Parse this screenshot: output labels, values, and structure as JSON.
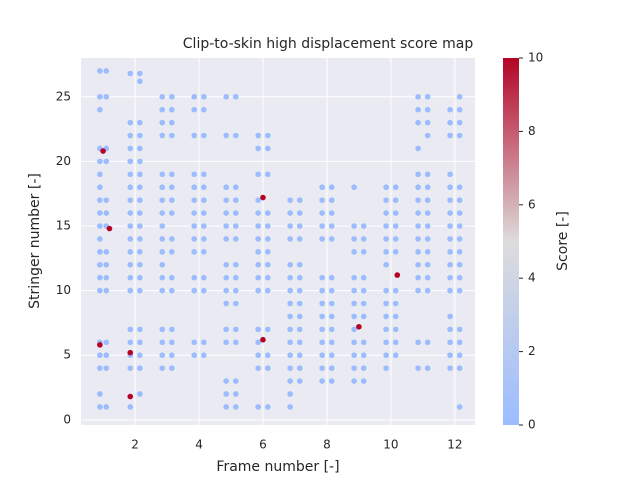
{
  "chart_data": {
    "type": "scatter",
    "title": "Clip-to-skin high displacement score map",
    "xlabel": "Frame number [-]",
    "ylabel": "Stringer number [-]",
    "xlim": [
      0.31,
      12.63
    ],
    "ylim": [
      -0.4,
      28
    ],
    "xticks": [
      2,
      4,
      6,
      8,
      10,
      12
    ],
    "yticks": [
      0,
      5,
      10,
      15,
      20,
      25
    ],
    "grid": true,
    "colorbar": {
      "label": "Score [-]",
      "clim": [
        0,
        10
      ],
      "ticks": [
        0,
        2,
        4,
        6,
        8,
        10
      ],
      "cmap": [
        "#9bbcff",
        "#dddcdc",
        "#b40426"
      ]
    },
    "x": [
      0.9,
      0.9,
      0.9,
      0.9,
      0.9,
      0.9,
      0.9,
      0.9,
      0.9,
      0.9,
      0.9,
      0.9,
      0.9,
      0.9,
      0.9,
      0.9,
      0.9,
      0.9,
      0.9,
      0.9,
      1.1,
      1.1,
      1.1,
      1.1,
      1.1,
      1.1,
      1.1,
      1.1,
      1.1,
      1.1,
      1.1,
      1.1,
      1.1,
      1.1,
      1.1,
      1.85,
      1.85,
      1.85,
      1.85,
      1.85,
      1.85,
      1.85,
      1.85,
      1.85,
      1.85,
      1.85,
      1.85,
      1.85,
      1.85,
      1.85,
      1.85,
      1.85,
      1.85,
      1.85,
      1.85,
      2.15,
      2.15,
      2.15,
      2.15,
      2.15,
      2.15,
      2.15,
      2.15,
      2.15,
      2.15,
      2.15,
      2.15,
      2.15,
      2.15,
      2.15,
      2.15,
      2.15,
      2.15,
      2.15,
      2.15,
      2.15,
      2.85,
      2.85,
      2.85,
      2.85,
      2.85,
      2.85,
      2.85,
      2.85,
      2.85,
      2.85,
      2.85,
      2.85,
      2.85,
      2.85,
      2.85,
      2.85,
      2.85,
      2.85,
      3.15,
      3.15,
      3.15,
      3.15,
      3.15,
      3.15,
      3.15,
      3.15,
      3.15,
      3.15,
      3.15,
      3.15,
      3.15,
      3.15,
      3.15,
      3.15,
      3.85,
      3.85,
      3.85,
      3.85,
      3.85,
      3.85,
      3.85,
      3.85,
      3.85,
      3.85,
      3.85,
      3.85,
      3.85,
      3.85,
      4.15,
      4.15,
      4.15,
      4.15,
      4.15,
      4.15,
      4.15,
      4.15,
      4.15,
      4.15,
      4.15,
      4.15,
      4.15,
      4.15,
      4.85,
      4.85,
      4.85,
      4.85,
      4.85,
      4.85,
      4.85,
      4.85,
      4.85,
      4.85,
      4.85,
      4.85,
      4.85,
      4.85,
      4.85,
      4.85,
      5.15,
      5.15,
      5.15,
      5.15,
      5.15,
      5.15,
      5.15,
      5.15,
      5.15,
      5.15,
      5.15,
      5.15,
      5.15,
      5.15,
      5.15,
      5.15,
      5.85,
      5.85,
      5.85,
      5.85,
      5.85,
      5.85,
      5.85,
      5.85,
      5.85,
      5.85,
      5.85,
      5.85,
      5.85,
      5.85,
      5.85,
      5.85,
      6.15,
      6.15,
      6.15,
      6.15,
      6.15,
      6.15,
      6.15,
      6.15,
      6.15,
      6.15,
      6.15,
      6.15,
      6.15,
      6.15,
      6.85,
      6.85,
      6.85,
      6.85,
      6.85,
      6.85,
      6.85,
      6.85,
      6.85,
      6.85,
      6.85,
      6.85,
      6.85,
      6.85,
      6.85,
      6.85,
      7.15,
      7.15,
      7.15,
      7.15,
      7.15,
      7.15,
      7.15,
      7.15,
      7.15,
      7.15,
      7.15,
      7.15,
      7.15,
      7.15,
      7.85,
      7.85,
      7.85,
      7.85,
      7.85,
      7.85,
      7.85,
      7.85,
      7.85,
      7.85,
      7.85,
      7.85,
      7.85,
      7.85,
      8.15,
      8.15,
      8.15,
      8.15,
      8.15,
      8.15,
      8.15,
      8.15,
      8.15,
      8.15,
      8.15,
      8.15,
      8.15,
      8.15,
      8.85,
      8.85,
      8.85,
      8.85,
      8.85,
      8.85,
      8.85,
      8.85,
      8.85,
      8.85,
      8.85,
      8.85,
      8.85,
      9.15,
      9.15,
      9.15,
      9.15,
      9.15,
      9.15,
      9.15,
      9.15,
      9.15,
      9.15,
      9.15,
      9.85,
      9.85,
      9.85,
      9.85,
      9.85,
      9.85,
      9.85,
      9.85,
      9.85,
      9.85,
      9.85,
      9.85,
      9.85,
      9.85,
      10.15,
      10.15,
      10.15,
      10.15,
      10.15,
      10.15,
      10.15,
      10.15,
      10.15,
      10.15,
      10.15,
      10.15,
      10.85,
      10.85,
      10.85,
      10.85,
      10.85,
      10.85,
      10.85,
      10.85,
      10.85,
      10.85,
      10.85,
      10.85,
      10.85,
      10.85,
      10.85,
      10.85,
      11.15,
      11.15,
      11.15,
      11.15,
      11.15,
      11.15,
      11.15,
      11.15,
      11.15,
      11.15,
      11.15,
      11.15,
      11.15,
      11.15,
      11.15,
      11.15,
      11.85,
      11.85,
      11.85,
      11.85,
      11.85,
      11.85,
      11.85,
      11.85,
      11.85,
      11.85,
      11.85,
      11.85,
      11.85,
      11.85,
      11.85,
      11.85,
      11.85,
      11.85,
      12.15,
      12.15,
      12.15,
      12.15,
      12.15,
      12.15,
      12.15,
      12.15,
      12.15,
      12.15,
      12.15,
      12.15,
      12.15,
      12.15,
      12.15,
      12.15,
      12.15,
      12.15,
      1.0,
      1.2,
      0.9,
      1.85,
      1.85,
      6.0,
      6.0,
      9.0,
      10.2
    ],
    "y": [
      27,
      25,
      24,
      21,
      20,
      19,
      18,
      17,
      16,
      15,
      14,
      13,
      12,
      11,
      10,
      6,
      5,
      4,
      2,
      1,
      27,
      25,
      21,
      20,
      17,
      16,
      15,
      13,
      12,
      11,
      10,
      6,
      5,
      4,
      1,
      26.8,
      23,
      22,
      21,
      20,
      19,
      18,
      17,
      16,
      15,
      14,
      13,
      12,
      11,
      10,
      7,
      6,
      5,
      4,
      1,
      26.8,
      26.2,
      23,
      22,
      21,
      20,
      19,
      18,
      17,
      16,
      15,
      14,
      13,
      12,
      11,
      10,
      7,
      6,
      5,
      4,
      2,
      25,
      24,
      23,
      22,
      19,
      18,
      17,
      16,
      15,
      14,
      13,
      12,
      11,
      10,
      7,
      6,
      5,
      4,
      25,
      24,
      23,
      22,
      19,
      18,
      17,
      16,
      14,
      13,
      11,
      10,
      7,
      6,
      5,
      4,
      25,
      24,
      22,
      19,
      18,
      17,
      16,
      15,
      14,
      13,
      11,
      10,
      6,
      5,
      25,
      24,
      22,
      19,
      18,
      17,
      16,
      15,
      14,
      13,
      11,
      10,
      6,
      5,
      25,
      22,
      18,
      17,
      16,
      15,
      14,
      12,
      11,
      10,
      9,
      7,
      6,
      3,
      2,
      1,
      25,
      22,
      18,
      17,
      16,
      15,
      14,
      12,
      11,
      10,
      9,
      7,
      6,
      3,
      2,
      1,
      22,
      21,
      19,
      17,
      16,
      15,
      14,
      13,
      12,
      11,
      10,
      7,
      6,
      5,
      4,
      1,
      22,
      21,
      19,
      16,
      15,
      14,
      13,
      12,
      11,
      10,
      7,
      5,
      4,
      1,
      17,
      16,
      15,
      14,
      12,
      11,
      10,
      9,
      8,
      7,
      6,
      5,
      4,
      3,
      2,
      1,
      17,
      16,
      15,
      14,
      12,
      11,
      10,
      9,
      8,
      7,
      6,
      5,
      4,
      3,
      18,
      17,
      16,
      15,
      14,
      11,
      10,
      9,
      8,
      7,
      6,
      5,
      4,
      3,
      18,
      17,
      16,
      15,
      14,
      11,
      10,
      9,
      8,
      7,
      6,
      5,
      4,
      3,
      18,
      15,
      14,
      13,
      11,
      10,
      9,
      8,
      7,
      6,
      5,
      4,
      3,
      15,
      14,
      13,
      11,
      10,
      9,
      8,
      6,
      5,
      4,
      3,
      18,
      17,
      16,
      15,
      14,
      13,
      12,
      10,
      9,
      8,
      7,
      6,
      5,
      4,
      18,
      17,
      16,
      15,
      14,
      13,
      10,
      9,
      8,
      7,
      6,
      5,
      25,
      24,
      23,
      21,
      19,
      18,
      17,
      16,
      15,
      14,
      13,
      12,
      11,
      10,
      6,
      4,
      25,
      24,
      23,
      22,
      19,
      18,
      17,
      16,
      15,
      14,
      13,
      12,
      11,
      10,
      6,
      4,
      24,
      23,
      22,
      19,
      18,
      17,
      16,
      15,
      14,
      13,
      12,
      11,
      10,
      8,
      7,
      6,
      5,
      4,
      25,
      24,
      23,
      22,
      18,
      17,
      16,
      15,
      14,
      13,
      12,
      11,
      10,
      7,
      6,
      5,
      4,
      1,
      20.8,
      14.8,
      5.8,
      5.2,
      1.8,
      17.2,
      6.2,
      7.2,
      11.2
    ],
    "scores": [
      0,
      0,
      0,
      0,
      0,
      0,
      0,
      0,
      0,
      0,
      0,
      0,
      0,
      0,
      0,
      0,
      0,
      0,
      0,
      0,
      0,
      0,
      0,
      0,
      0,
      0,
      0,
      0,
      0,
      0,
      0,
      0,
      0,
      0,
      0,
      0,
      0,
      0,
      0,
      0,
      0,
      0,
      0,
      0,
      0,
      0,
      0,
      0,
      0,
      0,
      0,
      0,
      0,
      0,
      0,
      0,
      0,
      0,
      0,
      0,
      0,
      0,
      0,
      0,
      0,
      0,
      0,
      0,
      0,
      0,
      0,
      0,
      0,
      0,
      0,
      0,
      0,
      0,
      0,
      0,
      0,
      0,
      0,
      0,
      0,
      0,
      0,
      0,
      0,
      0,
      0,
      0,
      0,
      0,
      0,
      0,
      0,
      0,
      0,
      0,
      0,
      0,
      0,
      0,
      0,
      0,
      0,
      0,
      0,
      0,
      0,
      0,
      0,
      0,
      0,
      0,
      0,
      0,
      0,
      0,
      0,
      0,
      0,
      0,
      0,
      0,
      0,
      0,
      0,
      0,
      0,
      0,
      0,
      0,
      0,
      0,
      0,
      0,
      0,
      0,
      0,
      0,
      0,
      0,
      0,
      0,
      0,
      0,
      0,
      0,
      0,
      0,
      0,
      0,
      0,
      0,
      0,
      0,
      0,
      0,
      0,
      0,
      0,
      0,
      0,
      0,
      0,
      0,
      0,
      0,
      0,
      0,
      0,
      0,
      0,
      0,
      0,
      0,
      0,
      0,
      0,
      0,
      0,
      0,
      0,
      0,
      0,
      0,
      0,
      0,
      0,
      0,
      0,
      0,
      0,
      0,
      0,
      0,
      0,
      0,
      0,
      0,
      0,
      0,
      0,
      0,
      0,
      0,
      0,
      0,
      0,
      0,
      0,
      0,
      0,
      0,
      0,
      0,
      0,
      0,
      0,
      0,
      0,
      0,
      0,
      0,
      0,
      0,
      0,
      0,
      0,
      0,
      0,
      0,
      0,
      0,
      0,
      0,
      0,
      0,
      0,
      0,
      0,
      0,
      0,
      0,
      0,
      0,
      0,
      0,
      0,
      0,
      0,
      0,
      0,
      0,
      0,
      0,
      0,
      0,
      0,
      0,
      0,
      0,
      0,
      0,
      0,
      0,
      0,
      0,
      0,
      0,
      0,
      0,
      0,
      0,
      0,
      0,
      0,
      0,
      0,
      0,
      0,
      0,
      0,
      0,
      0,
      0,
      0,
      0,
      0,
      0,
      0,
      0,
      0,
      0,
      0,
      0,
      0,
      0,
      0,
      0,
      0,
      0,
      0,
      0,
      0,
      0,
      0,
      0,
      0,
      0,
      0,
      0,
      0,
      0,
      0,
      0,
      0,
      0,
      0,
      0,
      0,
      0,
      0,
      0,
      0,
      0,
      0,
      0,
      0,
      0,
      0,
      0,
      0,
      0,
      0,
      0,
      0,
      0,
      0,
      0,
      0,
      0,
      0,
      0,
      0,
      0,
      0,
      0,
      0,
      0,
      0,
      0,
      0,
      0,
      0,
      0,
      0,
      0,
      0,
      0,
      0,
      0,
      0,
      0,
      0,
      0,
      0,
      0,
      0,
      0,
      0,
      0,
      0,
      0,
      10,
      10,
      10,
      10,
      10,
      10,
      10,
      10,
      10
    ]
  }
}
